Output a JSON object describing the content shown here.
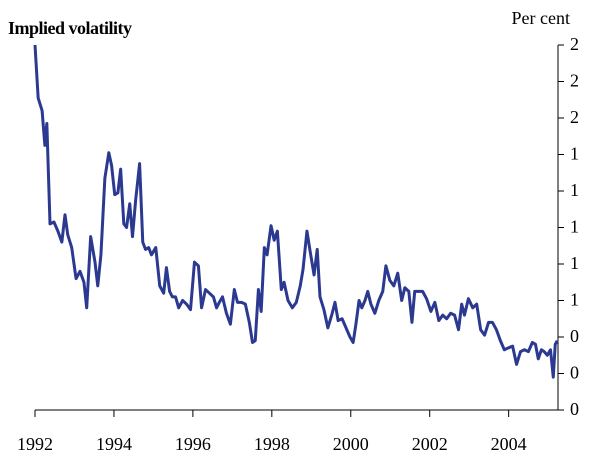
{
  "chart_data": {
    "type": "line",
    "title": "Implied volatility",
    "y_label": "Per cent",
    "color": "#2b3990",
    "x": [
      1992.0,
      1992.08,
      1992.18,
      1992.25,
      1992.3,
      1992.38,
      1992.48,
      1992.58,
      1992.68,
      1992.76,
      1992.83,
      1992.93,
      1993.04,
      1993.14,
      1993.24,
      1993.31,
      1993.41,
      1993.52,
      1993.59,
      1993.67,
      1993.77,
      1993.87,
      1993.94,
      1994.02,
      1994.1,
      1994.17,
      1994.25,
      1994.32,
      1994.4,
      1994.47,
      1994.55,
      1994.65,
      1994.73,
      1994.8,
      1994.88,
      1994.95,
      1995.06,
      1995.16,
      1995.26,
      1995.33,
      1995.41,
      1995.48,
      1995.56,
      1995.64,
      1995.74,
      1995.84,
      1995.94,
      1996.04,
      1996.14,
      1996.22,
      1996.32,
      1996.42,
      1996.52,
      1996.6,
      1996.67,
      1996.75,
      1996.85,
      1996.95,
      1997.05,
      1997.13,
      1997.23,
      1997.33,
      1997.43,
      1997.51,
      1997.58,
      1997.66,
      1997.73,
      1997.81,
      1997.88,
      1997.98,
      1998.06,
      1998.14,
      1998.24,
      1998.31,
      1998.41,
      1998.52,
      1998.62,
      1998.72,
      1998.79,
      1998.89,
      1998.97,
      1999.07,
      1999.15,
      1999.22,
      1999.32,
      1999.42,
      1999.53,
      1999.6,
      1999.68,
      1999.78,
      1999.88,
      1999.98,
      2000.06,
      2000.13,
      2000.21,
      2000.28,
      2000.36,
      2000.43,
      2000.51,
      2000.61,
      2000.71,
      2000.81,
      2000.89,
      2000.99,
      2001.09,
      2001.19,
      2001.29,
      2001.37,
      2001.47,
      2001.55,
      2001.62,
      2001.72,
      2001.82,
      2001.92,
      2002.03,
      2002.13,
      2002.23,
      2002.33,
      2002.43,
      2002.53,
      2002.63,
      2002.73,
      2002.81,
      2002.88,
      2002.98,
      2003.09,
      2003.19,
      2003.29,
      2003.39,
      2003.49,
      2003.59,
      2003.69,
      2003.79,
      2003.89,
      2003.99,
      2004.1,
      2004.2,
      2004.3,
      2004.4,
      2004.5,
      2004.6,
      2004.68,
      2004.75,
      2004.83,
      2004.9,
      2004.98,
      2005.06,
      2005.13,
      2005.18,
      2005.23
    ],
    "values": [
      2.0,
      1.71,
      1.64,
      1.45,
      1.57,
      1.02,
      1.03,
      0.98,
      0.92,
      1.07,
      0.96,
      0.89,
      0.72,
      0.76,
      0.7,
      0.56,
      0.95,
      0.81,
      0.68,
      0.85,
      1.27,
      1.41,
      1.34,
      1.18,
      1.19,
      1.32,
      1.02,
      1.0,
      1.13,
      0.95,
      1.15,
      1.35,
      0.92,
      0.88,
      0.89,
      0.85,
      0.89,
      0.68,
      0.64,
      0.78,
      0.65,
      0.62,
      0.62,
      0.56,
      0.6,
      0.58,
      0.55,
      0.81,
      0.79,
      0.56,
      0.66,
      0.64,
      0.62,
      0.56,
      0.59,
      0.62,
      0.53,
      0.47,
      0.66,
      0.59,
      0.59,
      0.58,
      0.48,
      0.37,
      0.38,
      0.66,
      0.54,
      0.89,
      0.85,
      1.01,
      0.93,
      0.98,
      0.66,
      0.7,
      0.6,
      0.56,
      0.59,
      0.68,
      0.77,
      0.98,
      0.87,
      0.74,
      0.88,
      0.62,
      0.55,
      0.45,
      0.53,
      0.59,
      0.49,
      0.5,
      0.45,
      0.4,
      0.37,
      0.47,
      0.6,
      0.56,
      0.6,
      0.65,
      0.58,
      0.53,
      0.6,
      0.65,
      0.79,
      0.71,
      0.68,
      0.75,
      0.6,
      0.67,
      0.65,
      0.48,
      0.65,
      0.65,
      0.65,
      0.61,
      0.54,
      0.59,
      0.49,
      0.52,
      0.5,
      0.53,
      0.52,
      0.44,
      0.58,
      0.52,
      0.61,
      0.56,
      0.58,
      0.44,
      0.41,
      0.48,
      0.48,
      0.44,
      0.38,
      0.33,
      0.34,
      0.35,
      0.25,
      0.32,
      0.33,
      0.32,
      0.37,
      0.36,
      0.28,
      0.33,
      0.32,
      0.3,
      0.33,
      0.18,
      0.36,
      0.38
    ],
    "xlim": [
      1992,
      2005.25
    ],
    "xticks": [
      1992,
      1994,
      1996,
      1998,
      2000,
      2002,
      2004
    ],
    "ylim": [
      0,
      2.0
    ],
    "yticks": [
      0,
      {
        "value": 0.2,
        "label": "0"
      },
      {
        "value": 0.4,
        "label": "0"
      },
      {
        "value": 0.6,
        "label": "1"
      },
      {
        "value": 0.8,
        "label": "1"
      },
      1,
      {
        "value": 1.2,
        "label": "1"
      },
      {
        "value": 1.4,
        "label": "1"
      },
      {
        "value": 1.6,
        "label": "2"
      },
      {
        "value": 1.8,
        "label": "2"
      },
      2
    ]
  }
}
